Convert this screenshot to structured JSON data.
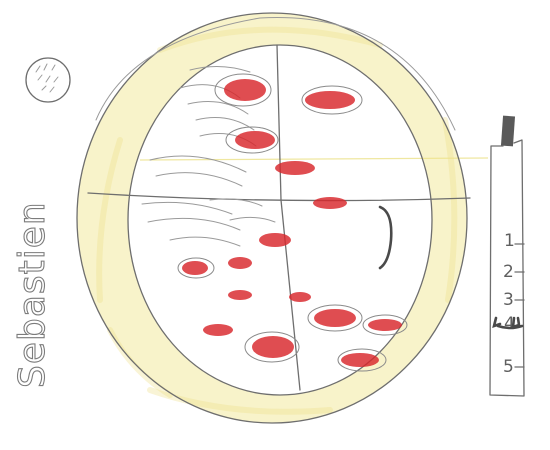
{
  "signature": {
    "name": "Sebastien"
  },
  "scale": {
    "labels": [
      "1",
      "2",
      "3",
      "4",
      "5"
    ],
    "marked_level": "4"
  },
  "colors": {
    "pencil": "#6e6e6e",
    "crust": "#f0e48a",
    "pepperoni": "#d8262b",
    "background": "#ffffff"
  }
}
